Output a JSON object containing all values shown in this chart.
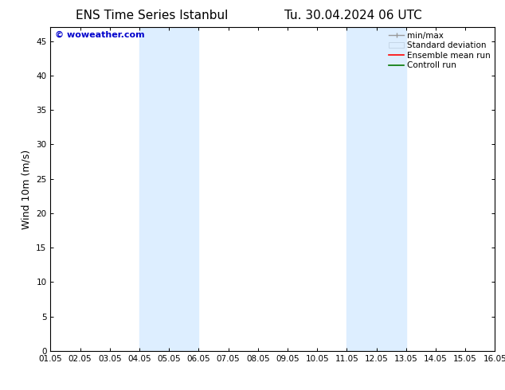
{
  "title_left": "ENS Time Series Istanbul",
  "title_right": "Tu. 30.04.2024 06 UTC",
  "ylabel": "Wind 10m (m/s)",
  "background_color": "#ffffff",
  "plot_bg_color": "#ffffff",
  "x_tick_labels": [
    "01.05",
    "02.05",
    "03.05",
    "04.05",
    "05.05",
    "06.05",
    "07.05",
    "08.05",
    "09.05",
    "10.05",
    "11.05",
    "12.05",
    "13.05",
    "14.05",
    "15.05",
    "16.05"
  ],
  "x_tick_positions": [
    0,
    1,
    2,
    3,
    4,
    5,
    6,
    7,
    8,
    9,
    10,
    11,
    12,
    13,
    14,
    15
  ],
  "ylim": [
    0,
    47
  ],
  "yticks": [
    0,
    5,
    10,
    15,
    20,
    25,
    30,
    35,
    40,
    45
  ],
  "shaded_regions": [
    {
      "x_start": 3,
      "x_end": 5,
      "color": "#ddeeff"
    },
    {
      "x_start": 10,
      "x_end": 12,
      "color": "#ddeeff"
    }
  ],
  "legend_fontsize": 7.5,
  "title_fontsize": 11,
  "axis_label_fontsize": 9,
  "tick_fontsize": 7.5,
  "watermark_text": "© woweather.com",
  "watermark_color": "#0000cc",
  "watermark_fontsize": 8
}
